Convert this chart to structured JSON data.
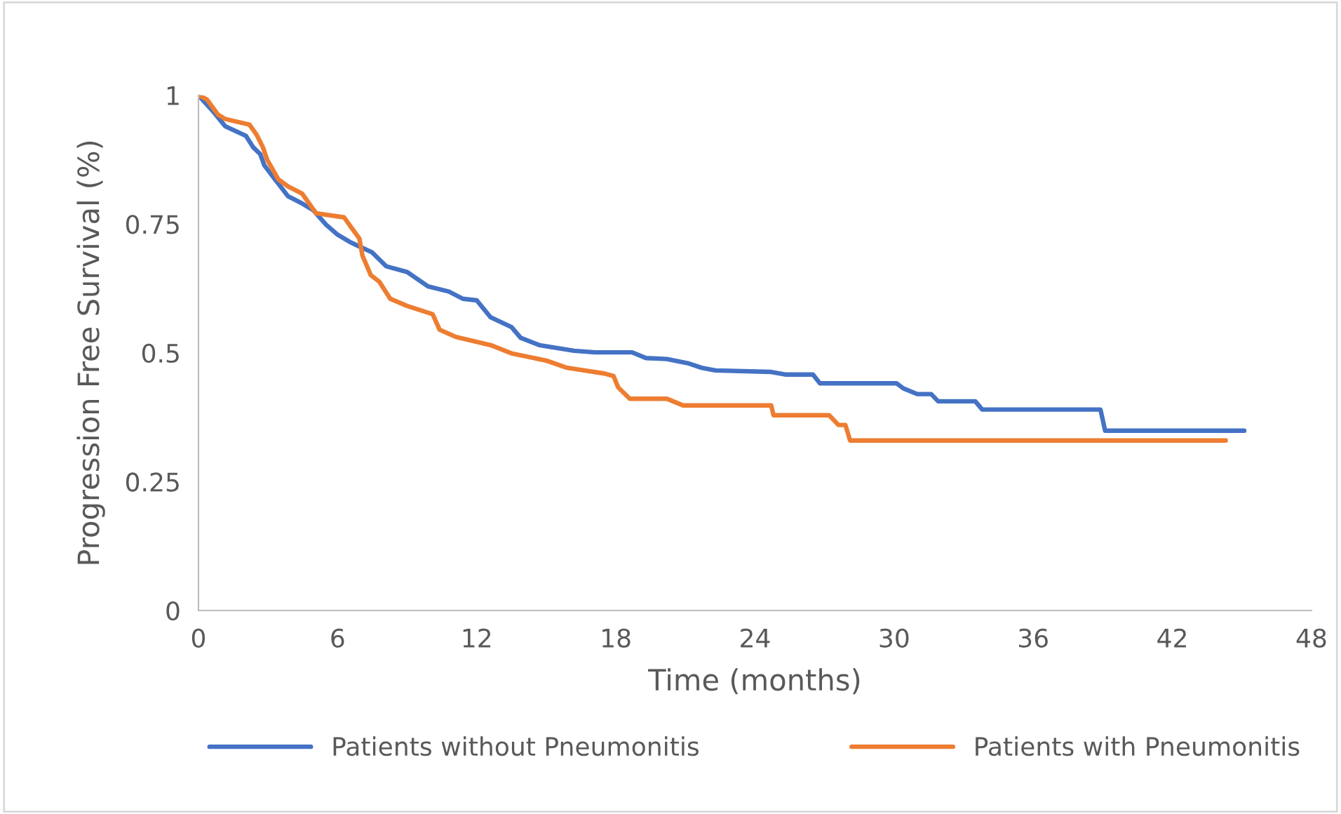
{
  "chart_data": {
    "type": "line",
    "xlabel": "Time (months)",
    "ylabel": "Progression Free Survival (%)",
    "xlim": [
      0,
      48
    ],
    "xticks": [
      0,
      6,
      12,
      18,
      24,
      30,
      36,
      42,
      48
    ],
    "ylim": [
      0,
      1
    ],
    "yticks": [
      0,
      0.25,
      0.5,
      0.75,
      1
    ],
    "grid": false,
    "legend": "bottom",
    "marker": "none",
    "line_style": "solid",
    "series": [
      {
        "name": "Patients without Pneumonitis",
        "color": "#4472c4",
        "x": [
          0,
          0.66,
          1.15,
          2.05,
          2.36,
          2.66,
          2.84,
          3.26,
          3.86,
          4.47,
          4.95,
          5.5,
          5.98,
          6.58,
          7.49,
          8.1,
          9.0,
          9.9,
          10.8,
          11.4,
          12.0,
          12.6,
          13.5,
          13.9,
          14.7,
          16.2,
          17.1,
          18.7,
          19.3,
          20.2,
          21.1,
          21.7,
          22.3,
          24.7,
          25.3,
          26.5,
          26.8,
          30.1,
          30.4,
          31.0,
          31.6,
          31.9,
          33.5,
          33.8,
          38.9,
          39.1,
          45.1
        ],
        "values": [
          1.0,
          0.967,
          0.94,
          0.921,
          0.899,
          0.886,
          0.864,
          0.839,
          0.804,
          0.79,
          0.777,
          0.749,
          0.73,
          0.714,
          0.695,
          0.668,
          0.657,
          0.629,
          0.619,
          0.605,
          0.602,
          0.569,
          0.55,
          0.529,
          0.515,
          0.504,
          0.501,
          0.501,
          0.49,
          0.488,
          0.48,
          0.471,
          0.466,
          0.463,
          0.458,
          0.458,
          0.441,
          0.441,
          0.431,
          0.42,
          0.42,
          0.406,
          0.406,
          0.39,
          0.39,
          0.349,
          0.349
        ]
      },
      {
        "name": "Patients with Pneumonitis",
        "color": "#ed7d31",
        "x": [
          0,
          0.36,
          0.85,
          1.15,
          2.2,
          2.5,
          2.78,
          2.96,
          3.44,
          3.86,
          4.47,
          5.07,
          6.28,
          6.58,
          6.94,
          7.07,
          7.43,
          7.8,
          8.27,
          9.0,
          10.1,
          10.4,
          11.1,
          12.6,
          13.5,
          15.0,
          15.9,
          17.5,
          17.9,
          18.1,
          18.6,
          20.2,
          20.9,
          24.7,
          24.8,
          27.2,
          27.6,
          27.9,
          28.1,
          44.3
        ],
        "values": [
          1.0,
          0.992,
          0.962,
          0.954,
          0.943,
          0.924,
          0.899,
          0.875,
          0.837,
          0.823,
          0.809,
          0.771,
          0.763,
          0.744,
          0.722,
          0.689,
          0.651,
          0.638,
          0.605,
          0.591,
          0.575,
          0.545,
          0.531,
          0.515,
          0.499,
          0.485,
          0.471,
          0.46,
          0.455,
          0.433,
          0.411,
          0.411,
          0.398,
          0.398,
          0.379,
          0.379,
          0.36,
          0.36,
          0.33,
          0.33
        ]
      }
    ]
  }
}
